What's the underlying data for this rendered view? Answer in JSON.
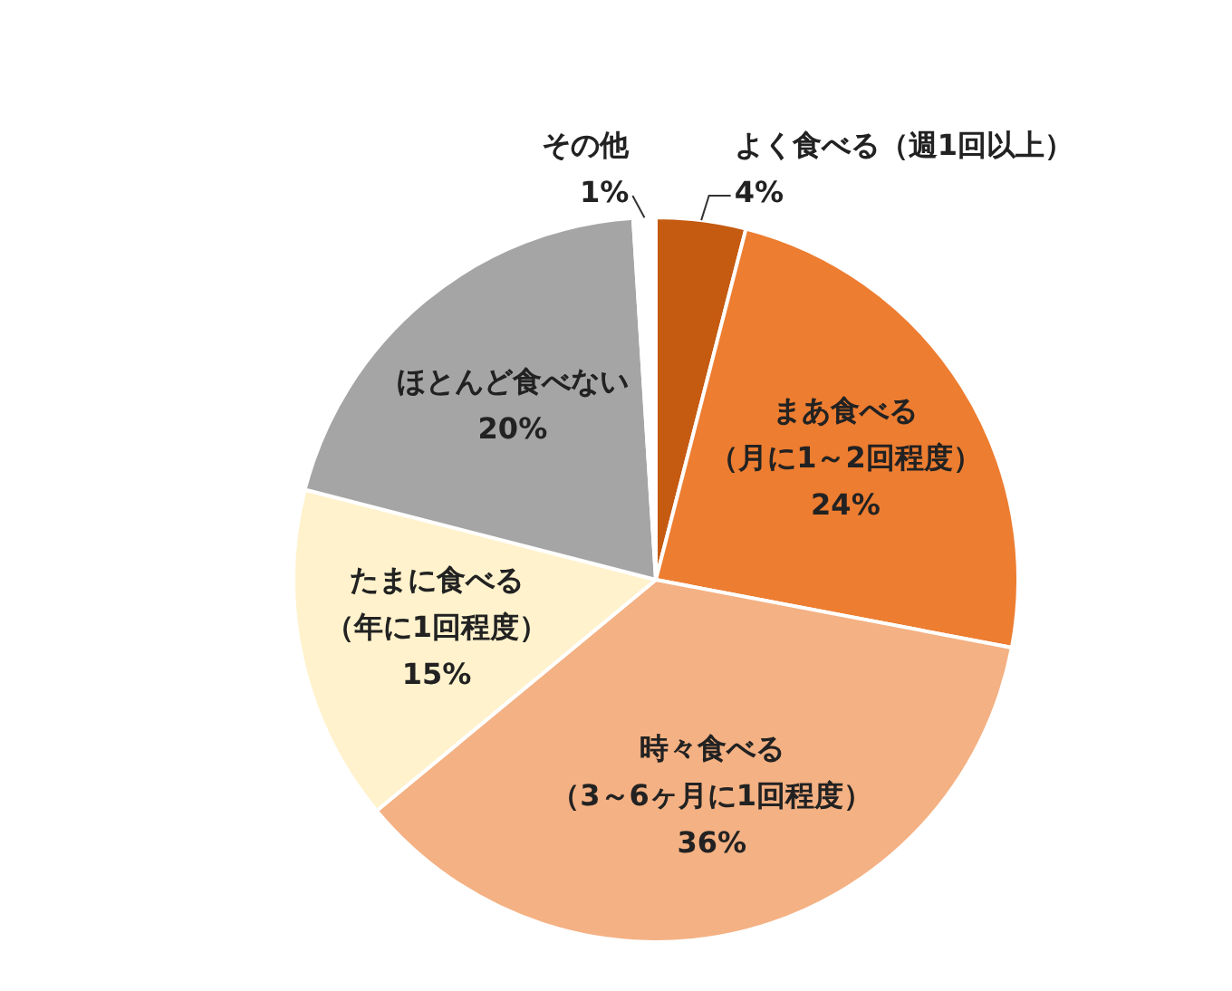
{
  "chart_data": {
    "type": "pie",
    "categories": [
      "よく食べる（週1回以上）",
      "まあ食べる（月に1～2回程度）",
      "時々食べる（3～6ヶ月に1回程度）",
      "たまに食べる（年に1回程度）",
      "ほとんど食べない",
      "その他"
    ],
    "values": [
      4,
      24,
      36,
      15,
      20,
      1
    ],
    "value_labels": [
      "4%",
      "24%",
      "36%",
      "15%",
      "20%",
      "1%"
    ],
    "colors": [
      "#c55a11",
      "#ed7d31",
      "#f4b183",
      "#fff2cc",
      "#a5a5a5",
      "#ffffff"
    ],
    "legend": false
  }
}
